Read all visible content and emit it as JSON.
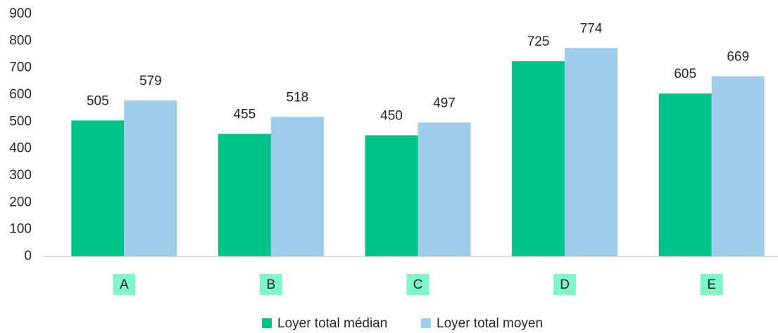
{
  "chart_data": {
    "type": "bar",
    "categories": [
      "A",
      "B",
      "C",
      "D",
      "E"
    ],
    "series": [
      {
        "name": "Loyer total médian",
        "color": "#00c389",
        "values": [
          505,
          455,
          450,
          725,
          605
        ]
      },
      {
        "name": "Loyer total moyen",
        "color": "#9ecdec",
        "values": [
          579,
          518,
          497,
          774,
          669
        ]
      }
    ],
    "ylim": [
      0,
      900
    ],
    "yticks": [
      0,
      100,
      200,
      300,
      400,
      500,
      600,
      700,
      800,
      900
    ],
    "grid": false,
    "legend": "bottom",
    "category_label_background": "#80f5c8"
  }
}
